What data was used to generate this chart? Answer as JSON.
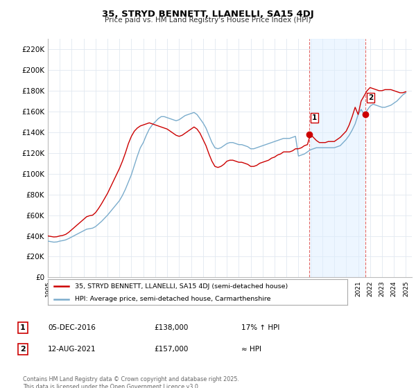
{
  "title": "35, STRYD BENNETT, LLANELLI, SA15 4DJ",
  "subtitle": "Price paid vs. HM Land Registry's House Price Index (HPI)",
  "ylim": [
    0,
    230000
  ],
  "yticks": [
    0,
    20000,
    40000,
    60000,
    80000,
    100000,
    120000,
    140000,
    160000,
    180000,
    200000,
    220000
  ],
  "red_color": "#cc0000",
  "blue_color": "#7aaccc",
  "shade_color": "#ddeeff",
  "marker1_year": 2016.92,
  "marker2_year": 2021.62,
  "marker1_price": 138000,
  "marker2_price": 157000,
  "marker1_label": "1",
  "marker2_label": "2",
  "marker1_date": "05-DEC-2016",
  "marker2_date": "12-AUG-2021",
  "marker1_pct": "17% ↑ HPI",
  "marker2_pct": "≈ HPI",
  "legend_label1": "35, STRYD BENNETT, LLANELLI, SA15 4DJ (semi-detached house)",
  "legend_label2": "HPI: Average price, semi-detached house, Carmarthenshire",
  "footer": "Contains HM Land Registry data © Crown copyright and database right 2025.\nThis data is licensed under the Open Government Licence v3.0.",
  "background_color": "#ffffff",
  "grid_color": "#e0e8f0",
  "hpi_years": [
    1995.0,
    1995.25,
    1995.5,
    1995.75,
    1996.0,
    1996.25,
    1996.5,
    1996.75,
    1997.0,
    1997.25,
    1997.5,
    1997.75,
    1998.0,
    1998.25,
    1998.5,
    1998.75,
    1999.0,
    1999.25,
    1999.5,
    1999.75,
    2000.0,
    2000.25,
    2000.5,
    2000.75,
    2001.0,
    2001.25,
    2001.5,
    2001.75,
    2002.0,
    2002.25,
    2002.5,
    2002.75,
    2003.0,
    2003.25,
    2003.5,
    2003.75,
    2004.0,
    2004.25,
    2004.5,
    2004.75,
    2005.0,
    2005.25,
    2005.5,
    2005.75,
    2006.0,
    2006.25,
    2006.5,
    2006.75,
    2007.0,
    2007.25,
    2007.5,
    2007.75,
    2008.0,
    2008.25,
    2008.5,
    2008.75,
    2009.0,
    2009.25,
    2009.5,
    2009.75,
    2010.0,
    2010.25,
    2010.5,
    2010.75,
    2011.0,
    2011.25,
    2011.5,
    2011.75,
    2012.0,
    2012.25,
    2012.5,
    2012.75,
    2013.0,
    2013.25,
    2013.5,
    2013.75,
    2014.0,
    2014.25,
    2014.5,
    2014.75,
    2015.0,
    2015.25,
    2015.5,
    2015.75,
    2016.0,
    2016.25,
    2016.5,
    2016.75,
    2017.0,
    2017.25,
    2017.5,
    2017.75,
    2018.0,
    2018.25,
    2018.5,
    2018.75,
    2019.0,
    2019.25,
    2019.5,
    2019.75,
    2020.0,
    2020.25,
    2020.5,
    2020.75,
    2021.0,
    2021.25,
    2021.5,
    2021.75,
    2022.0,
    2022.25,
    2022.5,
    2022.75,
    2023.0,
    2023.25,
    2023.5,
    2023.75,
    2024.0,
    2024.25,
    2024.5,
    2024.75,
    2025.0
  ],
  "hpi_values": [
    35000,
    34500,
    34000,
    34200,
    35000,
    35500,
    36200,
    37500,
    39000,
    40500,
    42000,
    43500,
    45000,
    46500,
    47000,
    47500,
    49000,
    51500,
    54000,
    57000,
    60000,
    63500,
    67000,
    70500,
    74000,
    79000,
    85000,
    92000,
    99000,
    108000,
    117000,
    125000,
    130000,
    137000,
    143000,
    147000,
    150000,
    153000,
    155000,
    155000,
    154000,
    153000,
    152000,
    151000,
    152000,
    154000,
    156000,
    157000,
    158000,
    159000,
    157000,
    153000,
    149000,
    144000,
    137000,
    130000,
    125000,
    124000,
    125000,
    127000,
    129000,
    130000,
    130000,
    129000,
    128000,
    128000,
    127000,
    126000,
    124000,
    124000,
    125000,
    126000,
    127000,
    128000,
    129000,
    130000,
    131000,
    132000,
    133000,
    134000,
    134000,
    134000,
    135000,
    136000,
    117000,
    118000,
    119000,
    121000,
    123000,
    124000,
    125000,
    125000,
    125000,
    125000,
    125000,
    125000,
    125000,
    126000,
    127000,
    130000,
    133000,
    137000,
    142000,
    148000,
    157000,
    162000,
    157000,
    161000,
    165000,
    167000,
    166000,
    165000,
    164000,
    164000,
    165000,
    166000,
    168000,
    170000,
    173000,
    176000,
    178000
  ],
  "red_years": [
    1995.0,
    1995.25,
    1995.5,
    1995.75,
    1996.0,
    1996.25,
    1996.5,
    1996.75,
    1997.0,
    1997.25,
    1997.5,
    1997.75,
    1998.0,
    1998.25,
    1998.5,
    1998.75,
    1999.0,
    1999.25,
    1999.5,
    1999.75,
    2000.0,
    2000.25,
    2000.5,
    2000.75,
    2001.0,
    2001.25,
    2001.5,
    2001.75,
    2002.0,
    2002.25,
    2002.5,
    2002.75,
    2003.0,
    2003.25,
    2003.5,
    2003.75,
    2004.0,
    2004.25,
    2004.5,
    2004.75,
    2005.0,
    2005.25,
    2005.5,
    2005.75,
    2006.0,
    2006.25,
    2006.5,
    2006.75,
    2007.0,
    2007.25,
    2007.5,
    2007.75,
    2008.0,
    2008.25,
    2008.5,
    2008.75,
    2009.0,
    2009.25,
    2009.5,
    2009.75,
    2010.0,
    2010.25,
    2010.5,
    2010.75,
    2011.0,
    2011.25,
    2011.5,
    2011.75,
    2012.0,
    2012.25,
    2012.5,
    2012.75,
    2013.0,
    2013.25,
    2013.5,
    2013.75,
    2014.0,
    2014.25,
    2014.5,
    2014.75,
    2015.0,
    2015.25,
    2015.5,
    2015.75,
    2016.0,
    2016.25,
    2016.5,
    2016.75,
    2017.0,
    2017.25,
    2017.5,
    2017.75,
    2018.0,
    2018.25,
    2018.5,
    2018.75,
    2019.0,
    2019.25,
    2019.5,
    2019.75,
    2020.0,
    2020.25,
    2020.5,
    2020.75,
    2021.0,
    2021.25,
    2021.5,
    2021.75,
    2022.0,
    2022.25,
    2022.5,
    2022.75,
    2023.0,
    2023.25,
    2023.5,
    2023.75,
    2024.0,
    2024.25,
    2024.5,
    2024.75,
    2025.0
  ],
  "red_values": [
    40000,
    39500,
    39000,
    39200,
    40000,
    40500,
    41500,
    43500,
    46000,
    48500,
    51000,
    53500,
    56000,
    58500,
    59500,
    60000,
    62500,
    66500,
    71000,
    76000,
    81000,
    87000,
    93000,
    99000,
    105000,
    112000,
    120000,
    129000,
    136000,
    141000,
    144000,
    146000,
    147000,
    148000,
    149000,
    148000,
    147000,
    146000,
    145000,
    144000,
    143000,
    141000,
    139000,
    137000,
    136000,
    137000,
    139000,
    141000,
    143000,
    145000,
    143000,
    139000,
    133000,
    127000,
    119000,
    112000,
    107000,
    106000,
    107000,
    109000,
    112000,
    113000,
    113000,
    112000,
    111000,
    111000,
    110000,
    109000,
    107000,
    107000,
    108000,
    110000,
    111000,
    112000,
    113000,
    115000,
    116000,
    118000,
    119000,
    121000,
    121000,
    121000,
    122000,
    124000,
    124000,
    125000,
    127000,
    128000,
    138000,
    135000,
    132000,
    130000,
    130000,
    130000,
    131000,
    131000,
    131000,
    133000,
    135000,
    138000,
    141000,
    147000,
    155000,
    164000,
    157000,
    170000,
    175000,
    180000,
    183000,
    182000,
    181000,
    180000,
    180000,
    181000,
    181000,
    181000,
    180000,
    179000,
    178000,
    178000,
    179000
  ]
}
